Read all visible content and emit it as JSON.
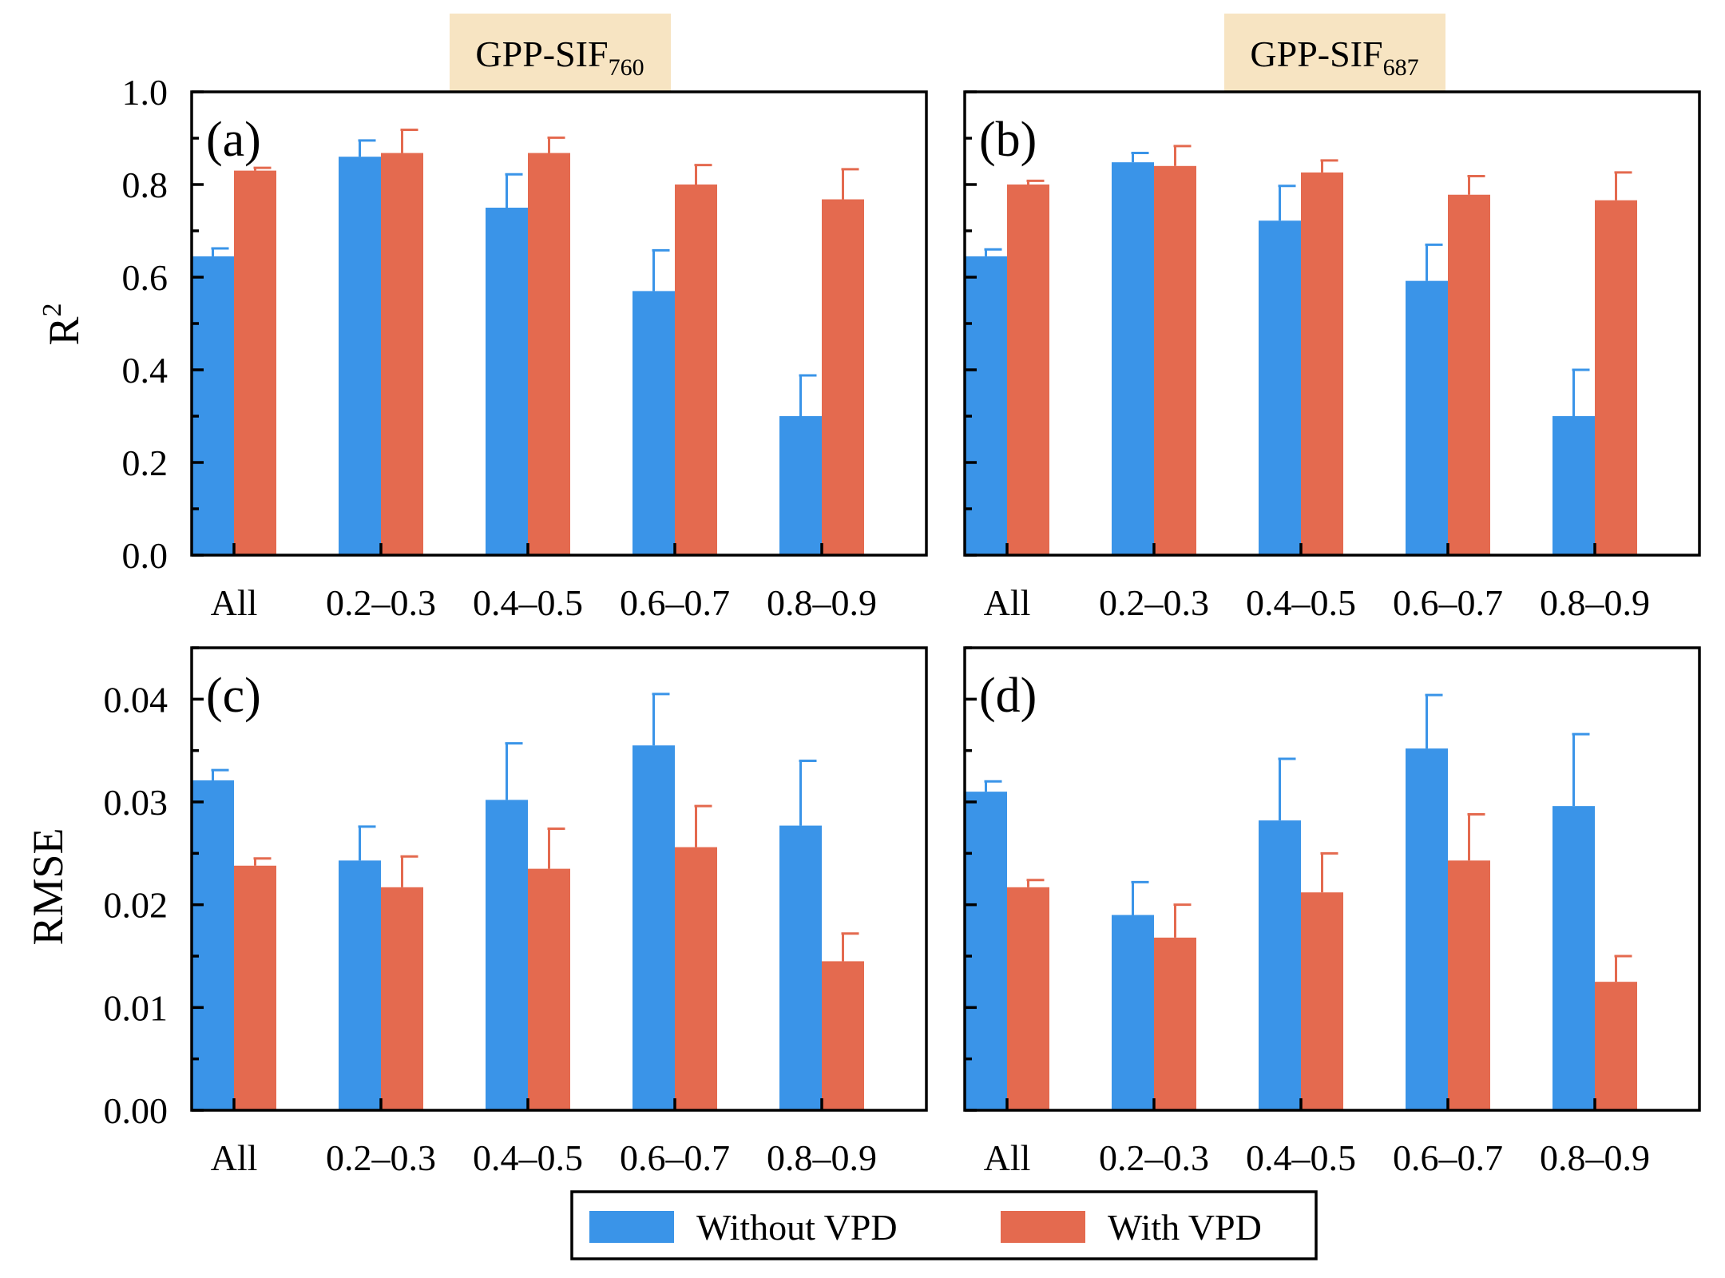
{
  "colors": {
    "without": "#3a94e8",
    "with": "#e46a4f",
    "title_bg": "#f7e4c2"
  },
  "column_titles": [
    {
      "base": "GPP-SIF",
      "sub": "760"
    },
    {
      "base": "GPP-SIF",
      "sub": "687"
    }
  ],
  "legend": {
    "without": "Without VPD",
    "with": "With VPD"
  },
  "chart_data": [
    {
      "type": "bar",
      "panel": "(a)",
      "ylabel": "R",
      "ylabel_sup": "2",
      "categories": [
        "All",
        "0.2–0.3",
        "0.4–0.5",
        "0.6–0.7",
        "0.8–0.9"
      ],
      "ylim": [
        0,
        1.0
      ],
      "yticks": [
        "0.0",
        "0.2",
        "0.4",
        "0.6",
        "0.8",
        "1.0"
      ],
      "series": [
        {
          "name": "Without VPD",
          "values": [
            0.645,
            0.86,
            0.75,
            0.57,
            0.3
          ],
          "errors": [
            0.017,
            0.035,
            0.072,
            0.088,
            0.088
          ]
        },
        {
          "name": "With VPD",
          "values": [
            0.83,
            0.868,
            0.868,
            0.8,
            0.768
          ],
          "errors": [
            0.006,
            0.05,
            0.033,
            0.042,
            0.065
          ]
        }
      ]
    },
    {
      "type": "bar",
      "panel": "(b)",
      "ylabel": "",
      "ylabel_sup": "",
      "categories": [
        "All",
        "0.2–0.3",
        "0.4–0.5",
        "0.6–0.7",
        "0.8–0.9"
      ],
      "ylim": [
        0,
        1.0
      ],
      "yticks": [],
      "series": [
        {
          "name": "Without VPD",
          "values": [
            0.645,
            0.848,
            0.722,
            0.592,
            0.3
          ],
          "errors": [
            0.015,
            0.02,
            0.075,
            0.078,
            0.1
          ]
        },
        {
          "name": "With VPD",
          "values": [
            0.8,
            0.84,
            0.826,
            0.778,
            0.766
          ],
          "errors": [
            0.008,
            0.043,
            0.026,
            0.04,
            0.06
          ]
        }
      ]
    },
    {
      "type": "bar",
      "panel": "(c)",
      "ylabel": "RMSE",
      "ylabel_sup": "",
      "categories": [
        "All",
        "0.2–0.3",
        "0.4–0.5",
        "0.6–0.7",
        "0.8–0.9"
      ],
      "ylim": [
        0,
        0.045
      ],
      "yticks": [
        "0.00",
        "0.01",
        "0.02",
        "0.03",
        "0.04"
      ],
      "series": [
        {
          "name": "Without VPD",
          "values": [
            0.0321,
            0.0243,
            0.0302,
            0.0355,
            0.0277
          ],
          "errors": [
            0.001,
            0.0033,
            0.0055,
            0.005,
            0.0063
          ]
        },
        {
          "name": "With VPD",
          "values": [
            0.0238,
            0.0217,
            0.0235,
            0.0256,
            0.0145
          ],
          "errors": [
            0.0007,
            0.003,
            0.0039,
            0.004,
            0.0027
          ]
        }
      ]
    },
    {
      "type": "bar",
      "panel": "(d)",
      "ylabel": "",
      "ylabel_sup": "",
      "categories": [
        "All",
        "0.2–0.3",
        "0.4–0.5",
        "0.6–0.7",
        "0.8–0.9"
      ],
      "ylim": [
        0,
        0.045
      ],
      "yticks": [],
      "series": [
        {
          "name": "Without VPD",
          "values": [
            0.031,
            0.019,
            0.0282,
            0.0352,
            0.0296
          ],
          "errors": [
            0.001,
            0.0032,
            0.006,
            0.0052,
            0.007
          ]
        },
        {
          "name": "With VPD",
          "values": [
            0.0217,
            0.0168,
            0.0212,
            0.0243,
            0.0125
          ],
          "errors": [
            0.0007,
            0.0032,
            0.0038,
            0.0045,
            0.0025
          ]
        }
      ]
    }
  ]
}
